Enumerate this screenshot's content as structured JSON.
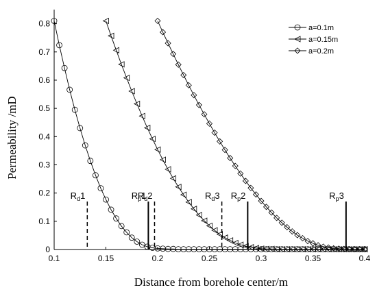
{
  "chart_data": {
    "type": "line",
    "title": "",
    "xlabel": "Distance from borehole center/m",
    "ylabel": "Permeability /mD",
    "xlim": [
      0.1,
      0.4
    ],
    "ylim": [
      0,
      0.85
    ],
    "x_ticks": [
      "0.1",
      "0.15",
      "0.2",
      "0.25",
      "0.3",
      "0.35",
      "0.4"
    ],
    "y_ticks": [
      "0",
      "0.1",
      "0.2",
      "0.3",
      "0.4",
      "0.5",
      "0.6",
      "0.7",
      "0.8"
    ],
    "grid": false,
    "legend_position": "top-right",
    "series": [
      {
        "name": "a=0.1m",
        "marker": "circle",
        "x": [
          0.1,
          0.105,
          0.11,
          0.115,
          0.12,
          0.125,
          0.13,
          0.135,
          0.14,
          0.145,
          0.15,
          0.155,
          0.16,
          0.165,
          0.17,
          0.175,
          0.18,
          0.185,
          0.19,
          0.195,
          0.2,
          0.205,
          0.21,
          0.215,
          0.22,
          0.225,
          0.23,
          0.235,
          0.24,
          0.245,
          0.25,
          0.255,
          0.26,
          0.265,
          0.27,
          0.275,
          0.28,
          0.285,
          0.29,
          0.295,
          0.3,
          0.305,
          0.31,
          0.315,
          0.32,
          0.325,
          0.33,
          0.335,
          0.34,
          0.345,
          0.35,
          0.355,
          0.36,
          0.365,
          0.37,
          0.375,
          0.38,
          0.385,
          0.39,
          0.395,
          0.4
        ],
        "y": [
          0.81,
          0.724,
          0.643,
          0.566,
          0.495,
          0.43,
          0.369,
          0.314,
          0.263,
          0.217,
          0.177,
          0.141,
          0.11,
          0.083,
          0.061,
          0.042,
          0.028,
          0.017,
          0.01,
          0.006,
          0.004,
          0.003,
          0.002,
          0.002,
          0.001,
          0.001,
          0.001,
          0.001,
          0.001,
          0.001,
          0.001,
          0.001,
          0.001,
          0.001,
          0.001,
          0.001,
          0.001,
          0.001,
          0.001,
          0.001,
          0.001,
          0.001,
          0.001,
          0.001,
          0.001,
          0.001,
          0.001,
          0.001,
          0.001,
          0.001,
          0.001,
          0.001,
          0.001,
          0.001,
          0.001,
          0.001,
          0.001,
          0.001,
          0.001,
          0.001,
          0.001
        ]
      },
      {
        "name": "a=0.15m",
        "marker": "triangle-left",
        "x": [
          0.15,
          0.155,
          0.16,
          0.165,
          0.17,
          0.175,
          0.18,
          0.185,
          0.19,
          0.195,
          0.2,
          0.205,
          0.21,
          0.215,
          0.22,
          0.225,
          0.23,
          0.235,
          0.24,
          0.245,
          0.25,
          0.255,
          0.26,
          0.265,
          0.27,
          0.275,
          0.28,
          0.285,
          0.29,
          0.295,
          0.3,
          0.305,
          0.31,
          0.315,
          0.32,
          0.325,
          0.33,
          0.335,
          0.34,
          0.345,
          0.35,
          0.355,
          0.36,
          0.365,
          0.37,
          0.375,
          0.38,
          0.385,
          0.39,
          0.395,
          0.4
        ],
        "y": [
          0.81,
          0.757,
          0.706,
          0.656,
          0.608,
          0.561,
          0.516,
          0.473,
          0.431,
          0.392,
          0.354,
          0.318,
          0.284,
          0.252,
          0.222,
          0.194,
          0.168,
          0.144,
          0.122,
          0.102,
          0.084,
          0.068,
          0.054,
          0.042,
          0.032,
          0.023,
          0.017,
          0.012,
          0.008,
          0.005,
          0.003,
          0.002,
          0.002,
          0.001,
          0.001,
          0.001,
          0.001,
          0.001,
          0.001,
          0.001,
          0.001,
          0.001,
          0.001,
          0.001,
          0.001,
          0.001,
          0.001,
          0.001,
          0.001,
          0.001,
          0.001
        ]
      },
      {
        "name": "a=0.2m",
        "marker": "diamond",
        "x": [
          0.2,
          0.205,
          0.21,
          0.215,
          0.22,
          0.225,
          0.23,
          0.235,
          0.24,
          0.245,
          0.25,
          0.255,
          0.26,
          0.265,
          0.27,
          0.275,
          0.28,
          0.285,
          0.29,
          0.295,
          0.3,
          0.305,
          0.31,
          0.315,
          0.32,
          0.325,
          0.33,
          0.335,
          0.34,
          0.345,
          0.35,
          0.355,
          0.36,
          0.365,
          0.37,
          0.375,
          0.38,
          0.385,
          0.39,
          0.395,
          0.4
        ],
        "y": [
          0.81,
          0.77,
          0.731,
          0.693,
          0.655,
          0.618,
          0.582,
          0.547,
          0.512,
          0.479,
          0.446,
          0.414,
          0.383,
          0.353,
          0.324,
          0.296,
          0.269,
          0.243,
          0.218,
          0.195,
          0.172,
          0.151,
          0.131,
          0.112,
          0.095,
          0.079,
          0.064,
          0.051,
          0.04,
          0.03,
          0.022,
          0.015,
          0.01,
          0.007,
          0.004,
          0.003,
          0.002,
          0.001,
          0.001,
          0.001,
          0.001
        ]
      }
    ],
    "annotations": [
      {
        "id": "rd1",
        "main": "R",
        "sub": "d",
        "suffix": "1",
        "x": 0.132,
        "style": "dashed"
      },
      {
        "id": "rp1",
        "main": "R",
        "sub": "p",
        "suffix": "1",
        "x": 0.191,
        "style": "solid"
      },
      {
        "id": "rd2",
        "main": "R",
        "sub": "d",
        "suffix": "2",
        "x": 0.197,
        "style": "dashed"
      },
      {
        "id": "rd3",
        "main": "R",
        "sub": "d",
        "suffix": "3",
        "x": 0.262,
        "style": "dashed"
      },
      {
        "id": "rp2",
        "main": "R",
        "sub": "p",
        "suffix": "2",
        "x": 0.287,
        "style": "solid"
      },
      {
        "id": "rp3",
        "main": "R",
        "sub": "p",
        "suffix": "3",
        "x": 0.382,
        "style": "solid"
      }
    ],
    "annotation_line_top": 0.17
  }
}
